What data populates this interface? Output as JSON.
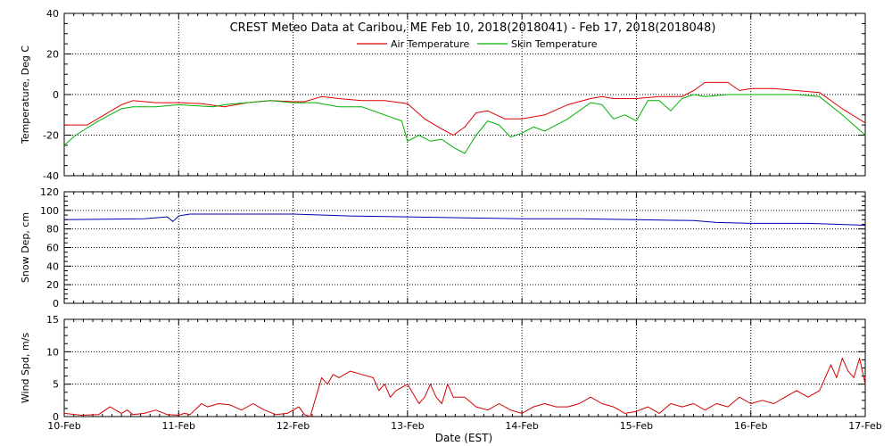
{
  "title": "CREST Meteo Data at Caribou, ME   Feb 10, 2018(2018041) - Feb 17, 2018(2018048)",
  "x_label": "Date (EST)",
  "colors": {
    "air": "#e00000",
    "skin": "#00b000",
    "snow": "#0000b0",
    "wind": "#d00000"
  },
  "chart_data": [
    {
      "type": "line",
      "ylabel": "Temperature, Deg C",
      "ylim": [
        -40,
        40
      ],
      "yticks": [
        -40,
        -20,
        0,
        20,
        40
      ],
      "grid": true,
      "legend": "top-center",
      "x_unit": "days since Feb 10, 2018 00:00 EST",
      "series": [
        {
          "name": "Air Temperature",
          "x": [
            0,
            0.2,
            0.35,
            0.5,
            0.6,
            0.8,
            1.0,
            1.2,
            1.4,
            1.6,
            1.8,
            2.0,
            2.1,
            2.25,
            2.4,
            2.6,
            2.8,
            3.0,
            3.15,
            3.3,
            3.4,
            3.5,
            3.6,
            3.7,
            3.85,
            4.0,
            4.2,
            4.4,
            4.6,
            4.7,
            4.8,
            5.0,
            5.2,
            5.4,
            5.5,
            5.6,
            5.8,
            5.9,
            6.0,
            6.2,
            6.4,
            6.6,
            6.8,
            7.0
          ],
          "y": [
            -15,
            -15,
            -10,
            -5,
            -3,
            -4,
            -4,
            -4.5,
            -6,
            -4,
            -3,
            -3.5,
            -3.5,
            -1,
            -2,
            -3,
            -3,
            -4.5,
            -12,
            -17,
            -20,
            -16,
            -9,
            -8,
            -12,
            -12,
            -10,
            -5,
            -2,
            -1,
            -2,
            -2,
            -1,
            -1,
            2,
            6,
            6,
            2,
            3,
            3,
            2,
            1,
            -7,
            -14
          ]
        },
        {
          "name": "Skin Temperature",
          "x": [
            0,
            0.1,
            0.3,
            0.5,
            0.6,
            0.8,
            1.0,
            1.3,
            1.4,
            1.6,
            1.8,
            2.0,
            2.2,
            2.4,
            2.6,
            2.8,
            2.95,
            3.0,
            3.1,
            3.2,
            3.3,
            3.4,
            3.5,
            3.6,
            3.7,
            3.8,
            3.9,
            4.0,
            4.1,
            4.2,
            4.4,
            4.6,
            4.7,
            4.8,
            4.9,
            5.0,
            5.1,
            5.2,
            5.3,
            5.4,
            5.5,
            5.6,
            5.8,
            6.0,
            6.2,
            6.4,
            6.6,
            6.8,
            7.0
          ],
          "y": [
            -25,
            -20,
            -13,
            -7,
            -6,
            -6,
            -5,
            -6,
            -5,
            -4,
            -3,
            -4,
            -4,
            -6,
            -6,
            -10,
            -13,
            -23,
            -20,
            -23,
            -22,
            -26,
            -29,
            -20,
            -13,
            -15,
            -21,
            -19,
            -16,
            -18,
            -12,
            -4,
            -5,
            -12,
            -10,
            -13,
            -3,
            -3,
            -8,
            -2,
            0,
            -1,
            0,
            0,
            0,
            0,
            -1,
            -10,
            -20
          ]
        }
      ]
    },
    {
      "type": "line",
      "ylabel": "Snow Dep, cm",
      "ylim": [
        0,
        120
      ],
      "yticks": [
        0,
        20,
        40,
        60,
        80,
        100,
        120
      ],
      "grid": true,
      "series": [
        {
          "name": "Snow Depth",
          "x": [
            0,
            0.7,
            0.9,
            0.95,
            1.0,
            1.05,
            1.1,
            1.2,
            1.5,
            2.0,
            2.5,
            3.0,
            3.5,
            4.0,
            4.5,
            5.0,
            5.5,
            5.7,
            6.0,
            6.5,
            7.0
          ],
          "y": [
            90,
            91,
            93,
            88,
            94,
            95,
            96,
            96,
            96,
            96,
            94,
            93,
            92,
            91,
            91,
            90,
            89,
            87,
            86,
            86,
            84
          ]
        }
      ]
    },
    {
      "type": "line",
      "ylabel": "Wind Spd, m/s",
      "ylim": [
        0,
        15
      ],
      "yticks": [
        0,
        5,
        10,
        15
      ],
      "grid": true,
      "series": [
        {
          "name": "Wind Speed",
          "x": [
            0,
            0.15,
            0.3,
            0.4,
            0.5,
            0.55,
            0.6,
            0.7,
            0.8,
            0.9,
            1.0,
            1.05,
            1.1,
            1.2,
            1.25,
            1.35,
            1.45,
            1.55,
            1.65,
            1.75,
            1.85,
            1.95,
            2.0,
            2.05,
            2.1,
            2.15,
            2.2,
            2.25,
            2.3,
            2.35,
            2.4,
            2.5,
            2.6,
            2.7,
            2.75,
            2.8,
            2.85,
            2.9,
            3.0,
            3.1,
            3.15,
            3.2,
            3.25,
            3.3,
            3.35,
            3.4,
            3.5,
            3.6,
            3.7,
            3.8,
            3.9,
            4.0,
            4.1,
            4.2,
            4.3,
            4.4,
            4.5,
            4.6,
            4.7,
            4.8,
            4.9,
            5.0,
            5.1,
            5.2,
            5.3,
            5.4,
            5.5,
            5.6,
            5.7,
            5.8,
            5.9,
            6.0,
            6.1,
            6.2,
            6.3,
            6.4,
            6.5,
            6.6,
            6.7,
            6.75,
            6.8,
            6.85,
            6.9,
            6.95,
            7.0
          ],
          "y": [
            0.5,
            0.2,
            0.3,
            1.5,
            0.5,
            1,
            0.3,
            0.5,
            1,
            0.3,
            0.2,
            0.5,
            0.3,
            2,
            1.5,
            2,
            1.8,
            1,
            2,
            1,
            0.3,
            0.5,
            1,
            1.5,
            0.3,
            0,
            3,
            6,
            5,
            6.5,
            6,
            7,
            6.5,
            6,
            4,
            5,
            3,
            4,
            5,
            2,
            3,
            5,
            3,
            2,
            5,
            3,
            3,
            1.5,
            1,
            2,
            1,
            0.5,
            1.5,
            2,
            1.5,
            1.5,
            2,
            3,
            2,
            1.5,
            0.5,
            0.8,
            1.5,
            0.5,
            2,
            1.5,
            2,
            1,
            2,
            1.5,
            3,
            2,
            2.5,
            2,
            3,
            4,
            3,
            4,
            8,
            6,
            9,
            7,
            6,
            9,
            5
          ]
        }
      ]
    }
  ],
  "x_ticks": [
    "10-Feb",
    "11-Feb",
    "12-Feb",
    "13-Feb",
    "14-Feb",
    "15-Feb",
    "16-Feb",
    "17-Feb"
  ]
}
